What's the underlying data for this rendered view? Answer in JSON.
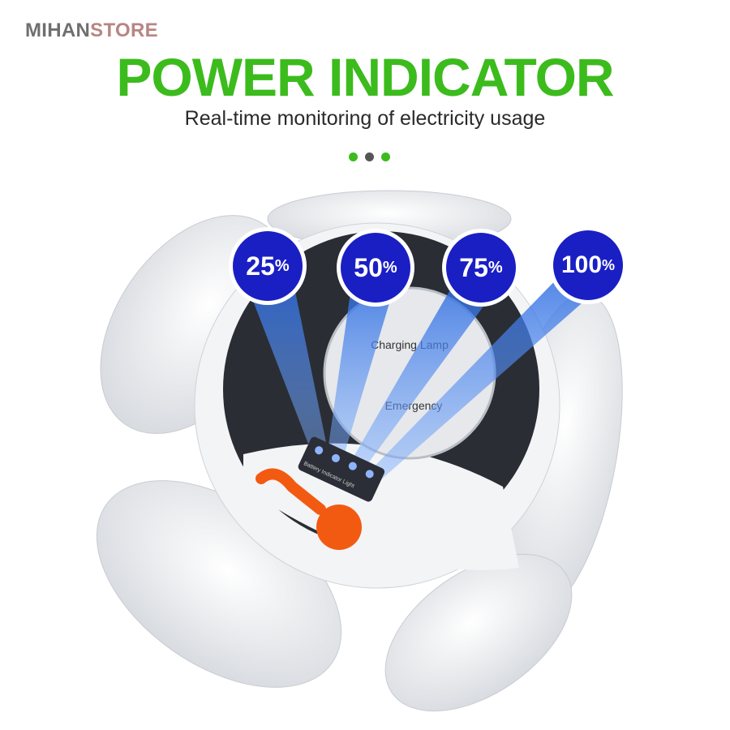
{
  "brand": {
    "part1": "MIHAN",
    "part2": "STORE",
    "color1": "#6f6f6f",
    "color2": "#b88585"
  },
  "header": {
    "title": "POWER INDICATOR",
    "subtitle": "Real-time monitoring of electricity usage",
    "title_color": "#3cbb1d",
    "dots": [
      {
        "color": "#3cbb1d"
      },
      {
        "color": "#555555"
      },
      {
        "color": "#3cbb1d"
      }
    ]
  },
  "badges": [
    {
      "value": "25",
      "unit": "%"
    },
    {
      "value": "50",
      "unit": "%"
    },
    {
      "value": "75",
      "unit": "%"
    },
    {
      "value": "100",
      "unit": "%"
    }
  ],
  "badge_color": "#1a1fc4",
  "product_lettering": {
    "top": "Charging Lamp",
    "bottom": "Emergency",
    "panel": "Battery Indicator Light"
  },
  "switch_color": "#f25a12"
}
